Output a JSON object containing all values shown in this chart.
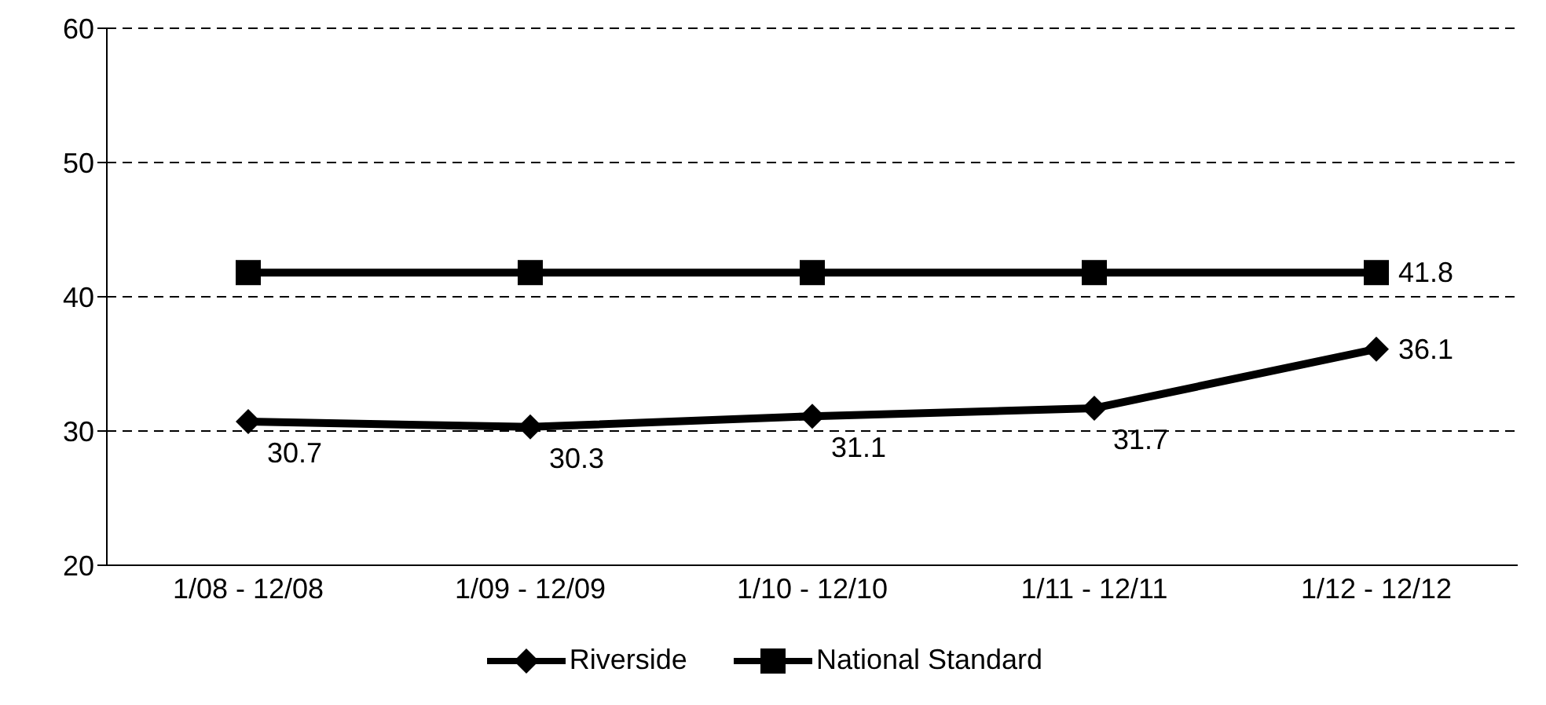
{
  "chart_data": {
    "type": "line",
    "categories": [
      "1/08 - 12/08",
      "1/09 - 12/09",
      "1/10 - 12/10",
      "1/11 - 12/11",
      "1/12 - 12/12"
    ],
    "series": [
      {
        "name": "Riverside",
        "color": "#000000",
        "marker": "diamond",
        "values": [
          30.7,
          30.3,
          31.1,
          31.7,
          36.1
        ],
        "value_labels": [
          "30.7",
          "30.3",
          "31.1",
          "31.7",
          "36.1"
        ]
      },
      {
        "name": "National Standard",
        "color": "#000000",
        "marker": "square",
        "values": [
          41.8,
          41.8,
          41.8,
          41.8,
          41.8
        ],
        "value_labels": [
          null,
          null,
          null,
          null,
          "41.8"
        ]
      }
    ],
    "ylim": [
      20,
      60
    ],
    "yticks": [
      20,
      30,
      40,
      50,
      60
    ],
    "grid": "y",
    "legend": "bottom"
  }
}
